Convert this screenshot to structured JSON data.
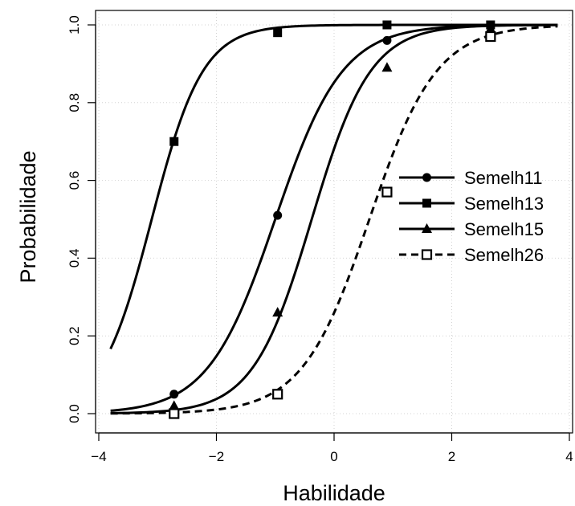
{
  "chart_data": {
    "type": "line",
    "title": "",
    "xlabel": "Habilidade",
    "ylabel": "Probabilidade",
    "xlim": [
      -4,
      4
    ],
    "ylim": [
      0.0,
      1.0
    ],
    "x_ticks": [
      -4,
      -2,
      0,
      2,
      4
    ],
    "x_tick_labels": [
      "−4",
      "−2",
      "0",
      "2",
      "4"
    ],
    "y_ticks": [
      0.0,
      0.2,
      0.4,
      0.6,
      0.8,
      1.0
    ],
    "y_tick_labels": [
      "0.0",
      "0.2",
      "0.4",
      "0.6",
      "0.8",
      "1.0"
    ],
    "grid": true,
    "legend_position": "right",
    "curve_x_range": [
      -3.8,
      3.8
    ],
    "series": [
      {
        "name": "Semelh11",
        "marker": "filled-circle",
        "line_style": "solid",
        "x": [
          -2.72,
          -0.96,
          0.9,
          2.66
        ],
        "values": [
          0.05,
          0.51,
          0.96,
          1.0
        ],
        "discrimination": 1.75,
        "difficulty": -1.0
      },
      {
        "name": "Semelh13",
        "marker": "filled-square",
        "line_style": "solid",
        "x": [
          -2.72,
          -0.96,
          0.9,
          2.66
        ],
        "values": [
          0.7,
          0.98,
          1.0,
          1.0
        ],
        "discrimination": 2.3,
        "difficulty": -3.1
      },
      {
        "name": "Semelh15",
        "marker": "filled-triangle",
        "line_style": "solid",
        "x": [
          -2.72,
          -0.96,
          0.9,
          2.66
        ],
        "values": [
          0.02,
          0.26,
          0.89,
          0.99
        ],
        "discrimination": 2.0,
        "difficulty": -0.38
      },
      {
        "name": "Semelh26",
        "marker": "open-square",
        "line_style": "dashed",
        "x": [
          -2.72,
          -0.96,
          0.9,
          2.66
        ],
        "values": [
          0.0,
          0.05,
          0.57,
          0.97
        ],
        "discrimination": 1.75,
        "difficulty": 0.6
      }
    ]
  }
}
